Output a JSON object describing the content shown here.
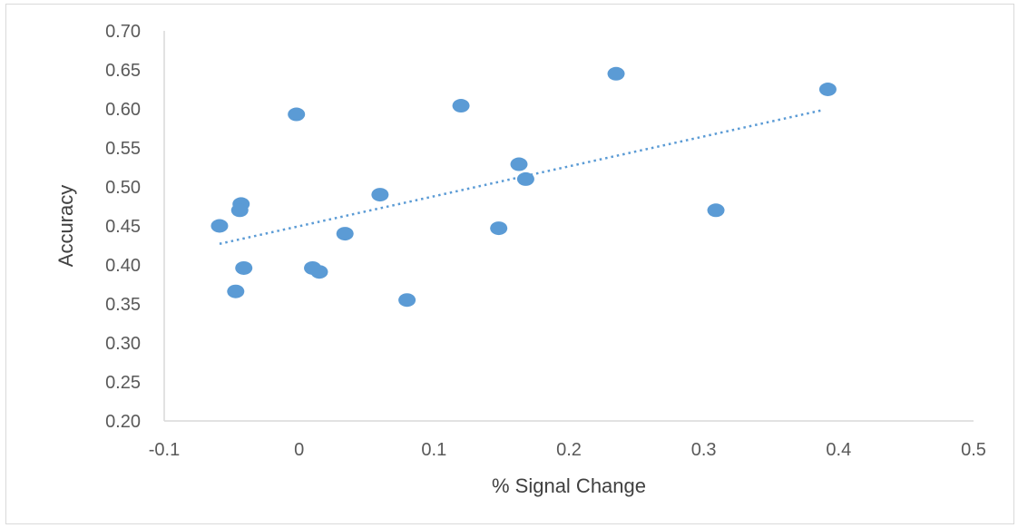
{
  "chart_data": {
    "type": "scatter",
    "title": "",
    "xlabel": "% Signal Change",
    "ylabel": "Accuracy",
    "xlim": [
      -0.1,
      0.5
    ],
    "ylim": [
      0.2,
      0.7
    ],
    "x_ticks": [
      -0.1,
      0,
      0.1,
      0.2,
      0.3,
      0.4,
      0.5
    ],
    "x_tick_labels": [
      "-0.1",
      "0",
      "0.1",
      "0.2",
      "0.3",
      "0.4",
      "0.5"
    ],
    "y_ticks": [
      0.2,
      0.25,
      0.3,
      0.35,
      0.4,
      0.45,
      0.5,
      0.55,
      0.6,
      0.65,
      0.7
    ],
    "y_tick_labels": [
      "0.20",
      "0.25",
      "0.30",
      "0.35",
      "0.40",
      "0.45",
      "0.50",
      "0.55",
      "0.60",
      "0.65",
      "0.70"
    ],
    "grid": false,
    "legend": "none",
    "marker_color": "#5b9bd5",
    "series": [
      {
        "points": [
          {
            "x": -0.059,
            "y": 0.45
          },
          {
            "x": -0.043,
            "y": 0.478
          },
          {
            "x": -0.044,
            "y": 0.47
          },
          {
            "x": -0.041,
            "y": 0.396
          },
          {
            "x": -0.047,
            "y": 0.366
          },
          {
            "x": -0.002,
            "y": 0.593
          },
          {
            "x": 0.01,
            "y": 0.396
          },
          {
            "x": 0.015,
            "y": 0.391
          },
          {
            "x": 0.034,
            "y": 0.44
          },
          {
            "x": 0.06,
            "y": 0.49
          },
          {
            "x": 0.08,
            "y": 0.355
          },
          {
            "x": 0.12,
            "y": 0.604
          },
          {
            "x": 0.148,
            "y": 0.447
          },
          {
            "x": 0.163,
            "y": 0.529
          },
          {
            "x": 0.168,
            "y": 0.51
          },
          {
            "x": 0.235,
            "y": 0.645
          },
          {
            "x": 0.309,
            "y": 0.47
          },
          {
            "x": 0.392,
            "y": 0.625
          }
        ]
      }
    ],
    "trendline": {
      "type": "linear",
      "style": "dotted",
      "color": "#5b9bd5",
      "x_start": -0.059,
      "y_start": 0.427,
      "x_end": 0.387,
      "y_end": 0.598
    }
  }
}
